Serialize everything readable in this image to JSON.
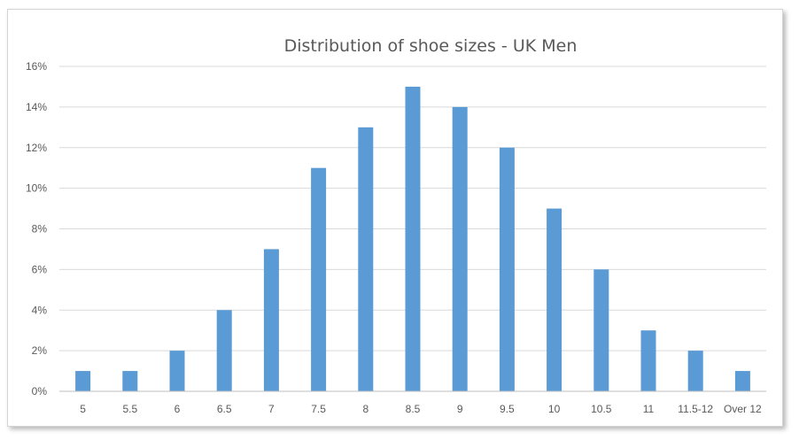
{
  "chart_data": {
    "type": "bar",
    "title": "Distribution of shoe sizes - UK Men",
    "xlabel": "",
    "ylabel": "",
    "categories": [
      "5",
      "5.5",
      "6",
      "6.5",
      "7",
      "7.5",
      "8",
      "8.5",
      "9",
      "9.5",
      "10",
      "10.5",
      "11",
      "11.5-12",
      "Over 12"
    ],
    "values": [
      1,
      1,
      2,
      4,
      7,
      11,
      13,
      15,
      14,
      12,
      9,
      6,
      3,
      2,
      1
    ],
    "value_unit": "%",
    "ylim": [
      0,
      16
    ],
    "yticks": [
      "0%",
      "2%",
      "4%",
      "6%",
      "8%",
      "10%",
      "12%",
      "14%",
      "16%"
    ],
    "grid": true,
    "legend": "none",
    "bar_color": "#5b9bd5"
  }
}
